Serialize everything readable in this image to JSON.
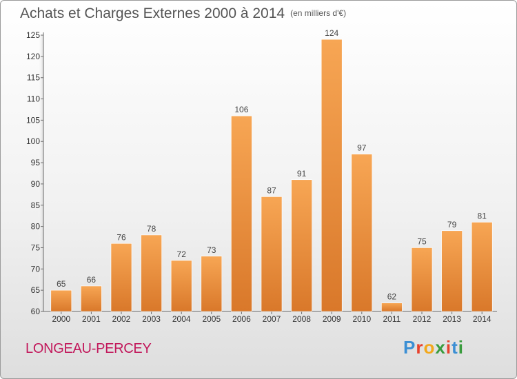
{
  "header": {
    "title": "Achats et Charges Externes 2000 à 2014",
    "unit": "(en milliers d'€)"
  },
  "footer": {
    "city": "LONGEAU-PERCEY",
    "logo": "Proxiti"
  },
  "colors": {
    "bar_light": "#f7a654",
    "bar_dark": "#d9782a",
    "logo": [
      "#3b8fd4",
      "#e8412c",
      "#f2a81d",
      "#3a9c3e",
      "#e8412c",
      "#3b8fd4",
      "#3a9c3e"
    ]
  },
  "chart_data": {
    "type": "bar",
    "title": "Achats et Charges Externes 2000 à 2014",
    "categories": [
      "2000",
      "2001",
      "2002",
      "2003",
      "2004",
      "2005",
      "2006",
      "2007",
      "2008",
      "2009",
      "2010",
      "2011",
      "2012",
      "2013",
      "2014"
    ],
    "values": [
      65,
      66,
      76,
      78,
      72,
      73,
      106,
      87,
      91,
      124,
      97,
      62,
      75,
      79,
      81
    ],
    "ylim": [
      60,
      125
    ],
    "yticks": [
      60,
      65,
      70,
      75,
      80,
      85,
      90,
      95,
      100,
      105,
      110,
      115,
      120,
      125
    ],
    "grid": false,
    "xlabel": "",
    "ylabel": ""
  }
}
